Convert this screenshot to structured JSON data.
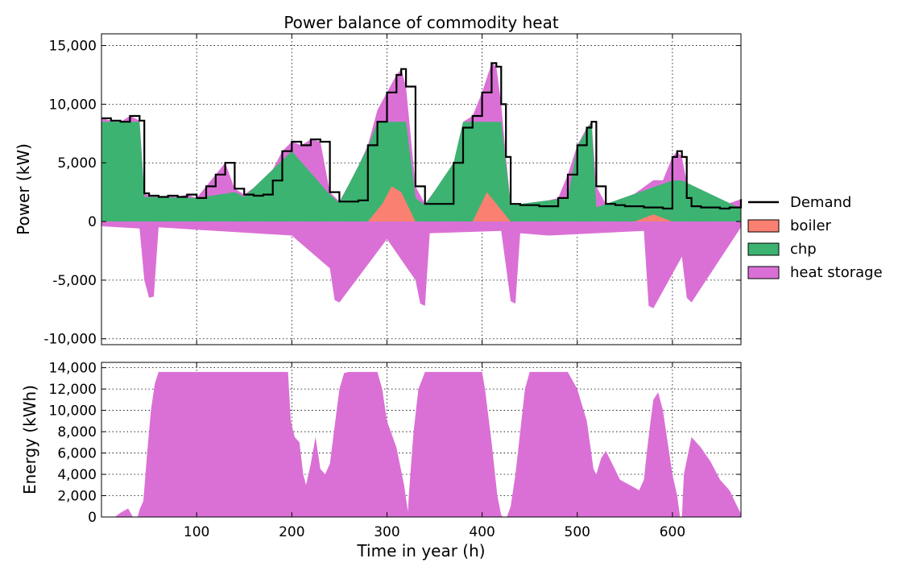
{
  "chart_data": [
    {
      "type": "area",
      "title": "Power balance of commodity heat",
      "ylabel": "Power (kW)",
      "xlabel": "",
      "xlim": [
        0,
        672
      ],
      "ylim": [
        -10500,
        16000
      ],
      "xticks": [
        100,
        200,
        300,
        400,
        500,
        600
      ],
      "yticks": [
        -10000,
        -5000,
        0,
        5000,
        10000,
        15000
      ],
      "ytick_labels": [
        "-10,000",
        "-5,000",
        "0",
        "5,000",
        "10,000",
        "15,000"
      ],
      "grid": true,
      "legend": {
        "position": "right",
        "entries": [
          {
            "label": "Demand",
            "kind": "line",
            "color": "#000000"
          },
          {
            "label": "boiler",
            "kind": "patch",
            "color": "#fa8072"
          },
          {
            "label": "chp",
            "kind": "patch",
            "color": "#3cb371"
          },
          {
            "label": "heat storage",
            "kind": "patch",
            "color": "#da70d6"
          }
        ]
      },
      "series": [
        {
          "name": "Demand",
          "x": [
            0,
            10,
            20,
            30,
            40,
            45,
            50,
            60,
            70,
            80,
            90,
            100,
            110,
            120,
            130,
            140,
            150,
            160,
            170,
            180,
            190,
            200,
            210,
            220,
            230,
            240,
            250,
            260,
            270,
            280,
            290,
            300,
            310,
            315,
            320,
            330,
            340,
            350,
            360,
            370,
            380,
            390,
            400,
            410,
            415,
            420,
            425,
            430,
            440,
            450,
            460,
            470,
            480,
            490,
            500,
            510,
            515,
            520,
            530,
            540,
            550,
            560,
            570,
            580,
            590,
            600,
            605,
            610,
            615,
            620,
            630,
            640,
            650,
            660,
            672
          ],
          "values": [
            8800,
            8600,
            8500,
            9000,
            8600,
            2400,
            2200,
            2100,
            2200,
            2100,
            2300,
            2000,
            3000,
            4000,
            5000,
            2800,
            2300,
            2200,
            2300,
            3500,
            6000,
            6800,
            6500,
            7000,
            6800,
            2500,
            1700,
            1700,
            1800,
            6500,
            8500,
            11000,
            12500,
            13000,
            11500,
            3000,
            1500,
            1500,
            1500,
            5000,
            8000,
            9000,
            11000,
            13500,
            13200,
            10000,
            5500,
            1500,
            1400,
            1400,
            1300,
            1300,
            2000,
            4000,
            6500,
            8000,
            8500,
            3000,
            1500,
            1400,
            1300,
            1300,
            1200,
            1200,
            1100,
            5500,
            6000,
            5500,
            2000,
            1300,
            1200,
            1200,
            1100,
            1200,
            1900
          ]
        },
        {
          "name": "boiler",
          "x": [
            0,
            10,
            280,
            295,
            305,
            315,
            330,
            390,
            405,
            420,
            430,
            560,
            580,
            600,
            672
          ],
          "values": [
            0,
            0,
            0,
            1500,
            3000,
            2500,
            0,
            0,
            2500,
            1000,
            0,
            0,
            600,
            0,
            0
          ]
        },
        {
          "name": "chp",
          "x": [
            0,
            40,
            45,
            100,
            140,
            150,
            200,
            240,
            250,
            280,
            290,
            320,
            330,
            340,
            370,
            380,
            420,
            430,
            490,
            500,
            515,
            520,
            600,
            610,
            672
          ],
          "values": [
            8500,
            8500,
            2100,
            2000,
            2500,
            2100,
            6000,
            2300,
            1600,
            6300,
            8500,
            8500,
            2000,
            1400,
            5000,
            8500,
            8500,
            1400,
            2000,
            6400,
            8500,
            1200,
            3500,
            3500,
            1100
          ]
        },
        {
          "name": "heat storage",
          "x": [
            0,
            40,
            45,
            50,
            55,
            60,
            100,
            200,
            240,
            245,
            250,
            300,
            330,
            335,
            340,
            345,
            420,
            430,
            435,
            440,
            470,
            570,
            575,
            580,
            610,
            615,
            620,
            672
          ],
          "values": [
            -400,
            -600,
            -5000,
            -6500,
            -6400,
            -500,
            -700,
            -1200,
            -4000,
            -6700,
            -6900,
            -1500,
            -5000,
            -7000,
            -7200,
            -1000,
            -800,
            -6800,
            -7000,
            -1000,
            -1200,
            -800,
            -7200,
            -7400,
            -3000,
            -6500,
            -6900,
            -500
          ]
        }
      ]
    },
    {
      "type": "area",
      "title": "",
      "xlabel": "Time in year (h)",
      "ylabel": "Energy (kWh)",
      "xlim": [
        0,
        672
      ],
      "ylim": [
        0,
        14500
      ],
      "xticks": [
        100,
        200,
        300,
        400,
        500,
        600
      ],
      "xtick_labels": [
        "100",
        "200",
        "300",
        "400",
        "500",
        "600"
      ],
      "yticks": [
        0,
        2000,
        4000,
        6000,
        8000,
        10000,
        12000,
        14000
      ],
      "ytick_labels": [
        "0",
        "2,000",
        "4,000",
        "6,000",
        "8,000",
        "10,000",
        "12,000",
        "14,000"
      ],
      "grid": true,
      "series": [
        {
          "name": "heat storage",
          "color": "#da70d6",
          "x": [
            0,
            14,
            20,
            28,
            33,
            38,
            40,
            44,
            48,
            52,
            56,
            60,
            65,
            100,
            150,
            196,
            199,
            203,
            208,
            212,
            215,
            220,
            225,
            230,
            235,
            240,
            245,
            250,
            255,
            260,
            265,
            290,
            295,
            300,
            310,
            318,
            322,
            323,
            325,
            328,
            333,
            340,
            345,
            380,
            400,
            403,
            410,
            416,
            420,
            422,
            426,
            430,
            435,
            440,
            445,
            450,
            455,
            470,
            490,
            500,
            505,
            510,
            517,
            520,
            525,
            530,
            535,
            545,
            555,
            565,
            570,
            573,
            577,
            580,
            585,
            590,
            600,
            605,
            608,
            610,
            612,
            620,
            630,
            640,
            650,
            660,
            667,
            672
          ],
          "values": [
            0,
            0,
            400,
            800,
            0,
            0,
            700,
            1500,
            6000,
            10000,
            12500,
            13600,
            13600,
            13600,
            13600,
            13600,
            9000,
            7500,
            7000,
            4000,
            3000,
            5000,
            7500,
            4500,
            4000,
            5000,
            8500,
            12000,
            13500,
            13600,
            13600,
            13600,
            12000,
            9000,
            6500,
            3000,
            500,
            2000,
            4500,
            8000,
            12000,
            13600,
            13600,
            13600,
            13600,
            12000,
            7000,
            2000,
            200,
            0,
            0,
            1000,
            4000,
            8000,
            12000,
            13600,
            13600,
            13600,
            13600,
            12000,
            10500,
            9000,
            4500,
            4000,
            5500,
            6200,
            5300,
            3500,
            3000,
            2500,
            3500,
            6000,
            9000,
            11000,
            11700,
            10000,
            4000,
            2000,
            0,
            0,
            4000,
            7500,
            6500,
            5200,
            3500,
            2500,
            1200,
            300
          ]
        }
      ]
    }
  ]
}
